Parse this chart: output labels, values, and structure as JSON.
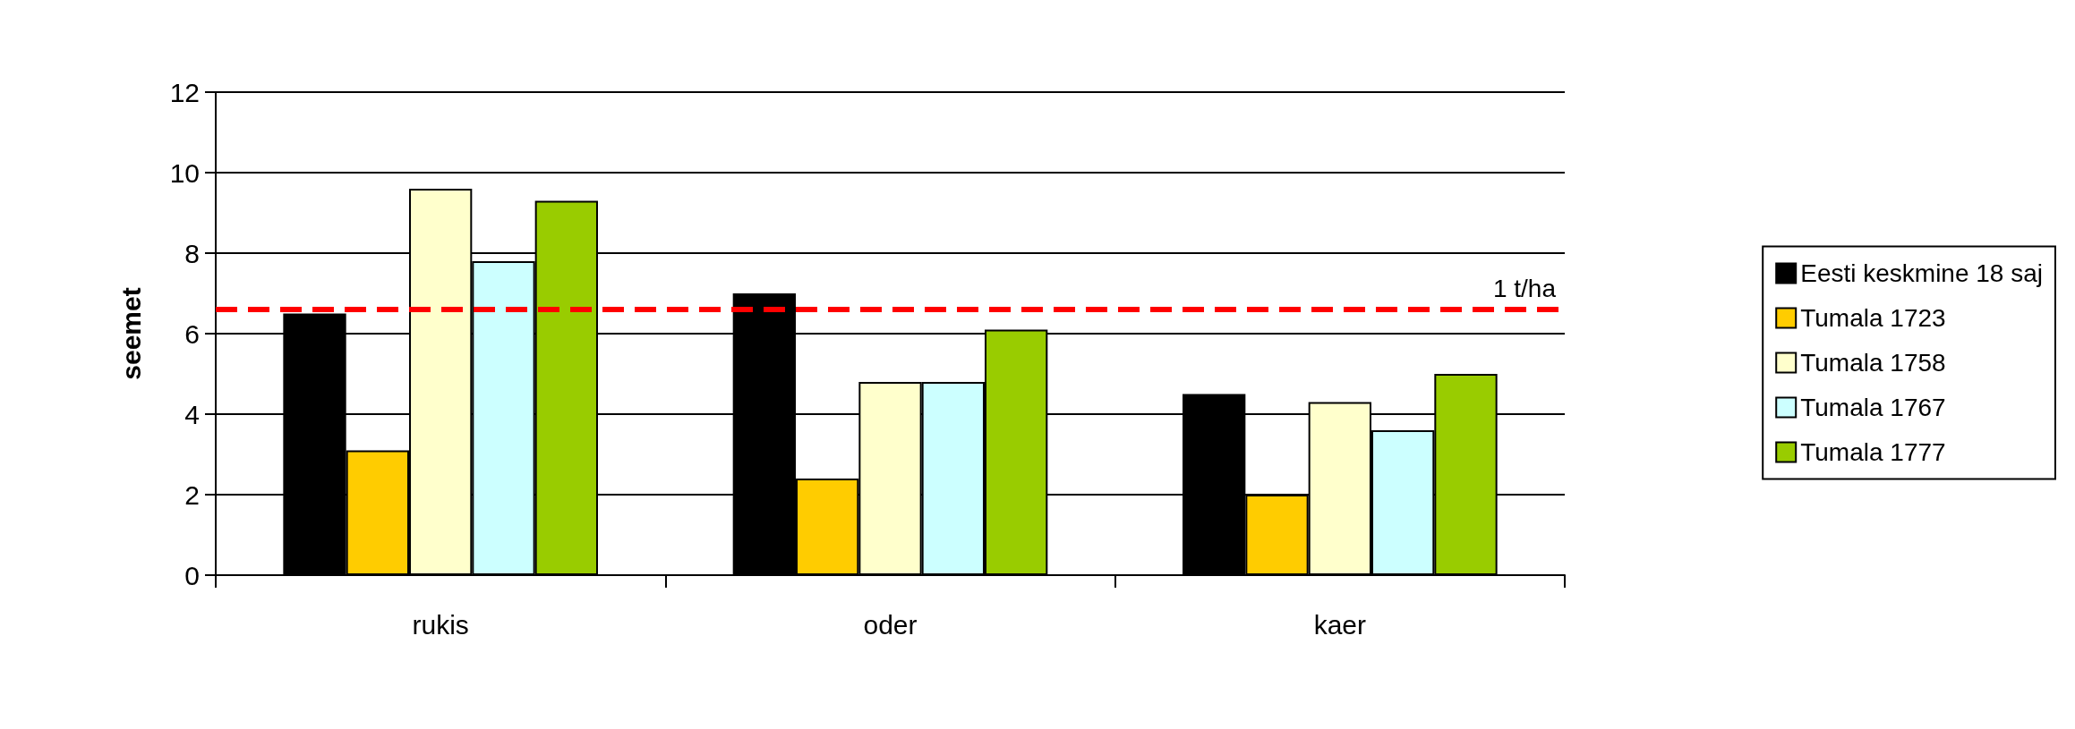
{
  "chart_data": {
    "type": "bar",
    "ylabel": "seemet",
    "categories": [
      "rukis",
      "oder",
      "kaer"
    ],
    "series": [
      {
        "name": "Eesti keskmine 18 saj",
        "color": "#000000",
        "values": [
          6.5,
          7.0,
          4.5
        ]
      },
      {
        "name": "Tumala 1723",
        "color": "#ffcc00",
        "values": [
          3.1,
          2.4,
          2.0
        ]
      },
      {
        "name": "Tumala 1758",
        "color": "#ffffcc",
        "values": [
          9.6,
          4.8,
          4.3
        ]
      },
      {
        "name": "Tumala 1767",
        "color": "#ccffff",
        "values": [
          7.8,
          4.8,
          3.6
        ]
      },
      {
        "name": "Tumala 1777",
        "color": "#99cc00",
        "values": [
          9.3,
          6.1,
          5.0
        ]
      }
    ],
    "ylim": [
      0,
      12
    ],
    "yticks": [
      0,
      2,
      4,
      6,
      8,
      10,
      12
    ],
    "grid": "y",
    "legend": "right",
    "ref_lines": [
      {
        "axis": "y",
        "value": 6.6,
        "label": "1 t/ha",
        "color": "#ff0000",
        "line_style": "dashed"
      }
    ]
  }
}
